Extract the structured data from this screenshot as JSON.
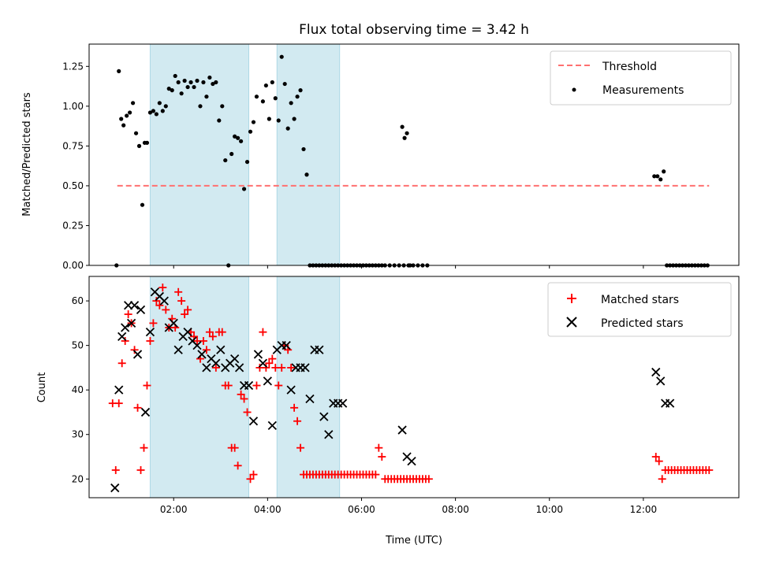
{
  "colors": {
    "threshold": "#ff7070",
    "measurement": "#000000",
    "matched": "#ff0000",
    "predicted": "#000000",
    "shade": "#add8e6"
  },
  "chart_data": [
    {
      "type": "scatter",
      "title": "Flux total observing time = 3.42 h",
      "xlabel": "",
      "ylabel": "Matched/Predicted stars",
      "xlim": [
        "00:12",
        "14:02"
      ],
      "ylim": [
        0.0,
        1.39
      ],
      "yticks": [
        0.0,
        0.25,
        0.5,
        0.75,
        1.0,
        1.25
      ],
      "ytick_labels": [
        "0.00",
        "0.25",
        "0.50",
        "0.75",
        "1.00",
        "1.25"
      ],
      "xticks": [
        "02:00",
        "04:00",
        "06:00",
        "08:00",
        "10:00",
        "12:00"
      ],
      "xtick_labels_shown": false,
      "shaded_regions": [
        [
          "01:30",
          "03:36"
        ],
        [
          "04:12",
          "05:32"
        ]
      ],
      "legend": {
        "placement": "upper right",
        "entries": [
          "Threshold",
          "Measurements"
        ]
      },
      "threshold": {
        "name": "Threshold",
        "value": 0.5,
        "x": [
          "00:48",
          "13:24"
        ]
      },
      "series": [
        {
          "name": "Measurements",
          "x": [
            "00:47",
            "00:50",
            "00:53",
            "00:56",
            "01:00",
            "01:04",
            "01:08",
            "01:12",
            "01:16",
            "01:20",
            "01:23",
            "01:26",
            "01:30",
            "01:34",
            "01:38",
            "01:42",
            "01:46",
            "01:50",
            "01:54",
            "01:58",
            "02:02",
            "02:06",
            "02:10",
            "02:14",
            "02:18",
            "02:22",
            "02:26",
            "02:30",
            "02:34",
            "02:38",
            "02:42",
            "02:46",
            "02:50",
            "02:54",
            "02:58",
            "03:02",
            "03:06",
            "03:10",
            "03:14",
            "03:18",
            "03:22",
            "03:26",
            "03:30",
            "03:34",
            "03:38",
            "03:42",
            "03:46",
            "03:54",
            "03:58",
            "04:02",
            "04:06",
            "04:10",
            "04:14",
            "04:18",
            "04:22",
            "04:26",
            "04:30",
            "04:34",
            "04:38",
            "04:42",
            "04:46",
            "04:50",
            "04:54",
            "04:58",
            "05:02",
            "05:06",
            "05:10",
            "05:14",
            "05:18",
            "05:22",
            "05:26",
            "05:30",
            "05:34",
            "05:38",
            "05:42",
            "05:46",
            "05:50",
            "05:54",
            "05:58",
            "06:02",
            "06:06",
            "06:10",
            "06:14",
            "06:18",
            "06:22",
            "06:26",
            "06:30",
            "06:36",
            "06:42",
            "06:48",
            "06:54",
            "07:00",
            "07:06",
            "07:12",
            "07:18",
            "07:24",
            "06:52",
            "06:55",
            "06:58",
            "07:02",
            "12:14",
            "12:18",
            "12:22",
            "12:26",
            "12:30",
            "12:34",
            "12:38",
            "12:42",
            "12:46",
            "12:50",
            "12:54",
            "12:58",
            "13:02",
            "13:06",
            "13:10",
            "13:14",
            "13:18",
            "13:22"
          ],
          "y": [
            0.0,
            1.22,
            0.92,
            0.88,
            0.94,
            0.96,
            1.02,
            0.83,
            0.75,
            0.38,
            0.77,
            0.77,
            0.96,
            0.97,
            0.95,
            1.02,
            0.97,
            1.0,
            1.11,
            1.1,
            1.19,
            1.15,
            1.08,
            1.16,
            1.12,
            1.15,
            1.12,
            1.16,
            1.0,
            1.15,
            1.06,
            1.18,
            1.14,
            1.15,
            0.91,
            1.0,
            0.66,
            0.0,
            0.7,
            0.81,
            0.8,
            0.78,
            0.48,
            0.65,
            0.84,
            0.9,
            1.06,
            1.03,
            1.13,
            0.92,
            1.15,
            1.05,
            0.91,
            1.31,
            1.14,
            0.86,
            1.02,
            0.92,
            1.06,
            1.1,
            0.73,
            0.57,
            0.0,
            0.0,
            0.0,
            0.0,
            0.0,
            0.0,
            0.0,
            0.0,
            0.0,
            0.0,
            0.0,
            0.0,
            0.0,
            0.0,
            0.0,
            0.0,
            0.0,
            0.0,
            0.0,
            0.0,
            0.0,
            0.0,
            0.0,
            0.0,
            0.0,
            0.0,
            0.0,
            0.0,
            0.0,
            0.0,
            0.0,
            0.0,
            0.0,
            0.0,
            0.87,
            0.8,
            0.83,
            0.0,
            0.56,
            0.56,
            0.54,
            0.59,
            0.0,
            0.0,
            0.0,
            0.0,
            0.0,
            0.0,
            0.0,
            0.0,
            0.0,
            0.0,
            0.0,
            0.0,
            0.0,
            0.0
          ]
        }
      ]
    },
    {
      "type": "scatter",
      "title": "",
      "xlabel": "Time (UTC)",
      "ylabel": "Count",
      "xlim": [
        "00:12",
        "14:02"
      ],
      "ylim": [
        15.8,
        65.5
      ],
      "yticks": [
        20,
        30,
        40,
        50,
        60
      ],
      "ytick_labels": [
        "20",
        "30",
        "40",
        "50",
        "60"
      ],
      "xticks": [
        "02:00",
        "04:00",
        "06:00",
        "08:00",
        "10:00",
        "12:00"
      ],
      "xtick_labels": [
        "02:00",
        "04:00",
        "06:00",
        "08:00",
        "10:00",
        "12:00"
      ],
      "shaded_regions": [
        [
          "01:30",
          "03:36"
        ],
        [
          "04:12",
          "05:32"
        ]
      ],
      "legend": {
        "placement": "upper right",
        "entries": [
          "Matched stars",
          "Predicted stars"
        ]
      },
      "series": [
        {
          "name": "Matched stars",
          "marker": "+",
          "x": [
            "00:42",
            "00:46",
            "00:50",
            "00:54",
            "00:58",
            "01:02",
            "01:06",
            "01:10",
            "01:14",
            "01:18",
            "01:22",
            "01:26",
            "01:30",
            "01:34",
            "01:38",
            "01:42",
            "01:46",
            "01:50",
            "01:54",
            "01:58",
            "02:02",
            "02:06",
            "02:10",
            "02:14",
            "02:18",
            "02:22",
            "02:26",
            "02:30",
            "02:34",
            "02:38",
            "02:42",
            "02:46",
            "02:50",
            "02:54",
            "02:58",
            "03:02",
            "03:06",
            "03:10",
            "03:14",
            "03:18",
            "03:22",
            "03:26",
            "03:30",
            "03:34",
            "03:38",
            "03:42",
            "03:46",
            "03:50",
            "03:54",
            "03:58",
            "04:02",
            "04:06",
            "04:10",
            "04:14",
            "04:18",
            "04:22",
            "04:26",
            "04:30",
            "04:34",
            "04:38",
            "04:42",
            "04:46",
            "04:50",
            "04:54",
            "04:58",
            "05:02",
            "05:06",
            "05:10",
            "05:14",
            "05:18",
            "05:22",
            "05:26",
            "05:30",
            "05:34",
            "05:38",
            "05:42",
            "05:46",
            "05:50",
            "05:54",
            "05:58",
            "06:02",
            "06:06",
            "06:10",
            "06:14",
            "06:18",
            "06:22",
            "06:26",
            "06:30",
            "06:34",
            "06:38",
            "06:42",
            "06:46",
            "06:50",
            "06:54",
            "06:58",
            "07:02",
            "07:06",
            "07:10",
            "07:14",
            "07:18",
            "07:22",
            "07:26",
            "12:16",
            "12:20",
            "12:24",
            "12:28",
            "12:32",
            "12:36",
            "12:40",
            "12:44",
            "12:48",
            "12:52",
            "12:56",
            "13:00",
            "13:04",
            "13:08",
            "13:12",
            "13:16",
            "13:20",
            "13:24"
          ],
          "y": [
            37,
            22,
            37,
            46,
            51,
            57,
            55,
            49,
            36,
            22,
            27,
            41,
            51,
            55,
            60,
            59,
            63,
            58,
            54,
            56,
            54,
            62,
            60,
            57,
            58,
            53,
            52,
            51,
            47,
            51,
            49,
            53,
            52,
            45,
            53,
            53,
            41,
            41,
            27,
            27,
            23,
            39,
            38,
            35,
            20,
            21,
            41,
            45,
            53,
            45,
            46,
            47,
            45,
            41,
            45,
            50,
            49,
            45,
            36,
            33,
            27,
            21,
            21,
            21,
            21,
            21,
            21,
            21,
            21,
            21,
            21,
            21,
            21,
            21,
            21,
            21,
            21,
            21,
            21,
            21,
            21,
            21,
            21,
            21,
            21,
            27,
            25,
            20,
            20,
            20,
            20,
            20,
            20,
            20,
            20,
            20,
            20,
            20,
            20,
            20,
            20,
            20,
            25,
            24,
            20,
            22,
            22,
            22,
            22,
            22,
            22,
            22,
            22,
            22,
            22,
            22,
            22,
            22,
            22,
            22
          ],
          "note": ""
        },
        {
          "name": "Predicted stars",
          "marker": "x",
          "x": [
            "00:45",
            "00:50",
            "00:54",
            "00:58",
            "01:02",
            "01:06",
            "01:10",
            "01:14",
            "01:18",
            "01:24",
            "01:30",
            "01:36",
            "01:42",
            "01:48",
            "01:54",
            "02:00",
            "02:06",
            "02:12",
            "02:18",
            "02:24",
            "02:30",
            "02:36",
            "02:42",
            "02:48",
            "02:54",
            "03:00",
            "03:06",
            "03:12",
            "03:18",
            "03:24",
            "03:30",
            "03:36",
            "03:42",
            "03:48",
            "03:54",
            "04:00",
            "04:06",
            "04:12",
            "04:18",
            "04:24",
            "04:30",
            "04:36",
            "04:42",
            "04:48",
            "04:54",
            "05:00",
            "05:06",
            "05:12",
            "05:18",
            "05:24",
            "05:30",
            "05:36",
            "06:52",
            "06:58",
            "07:04",
            "12:16",
            "12:22",
            "12:28",
            "12:34"
          ],
          "y": [
            18,
            40,
            52,
            54,
            59,
            55,
            59,
            48,
            58,
            35,
            53,
            62,
            61,
            60,
            54,
            55,
            49,
            52,
            53,
            51,
            50,
            48,
            45,
            47,
            46,
            49,
            45,
            46,
            47,
            45,
            41,
            41,
            33,
            48,
            46,
            42,
            32,
            49,
            50,
            50,
            40,
            45,
            45,
            45,
            38,
            49,
            49,
            34,
            30,
            37,
            37,
            37,
            31,
            25,
            24,
            44,
            42,
            37,
            37
          ]
        }
      ]
    }
  ]
}
